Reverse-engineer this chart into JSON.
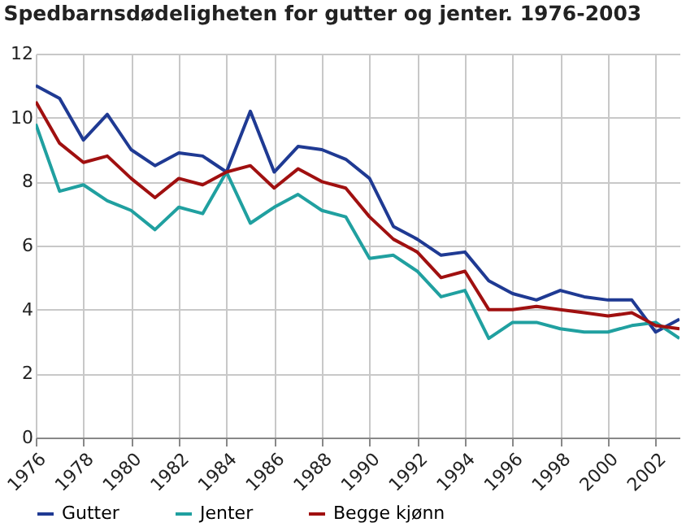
{
  "chart_data": {
    "type": "line",
    "title": "Spedbarnsdødeligheten for gutter og jenter. 1976-2003",
    "x": [
      1976,
      1977,
      1978,
      1979,
      1980,
      1981,
      1982,
      1983,
      1984,
      1985,
      1986,
      1987,
      1988,
      1989,
      1990,
      1991,
      1992,
      1993,
      1994,
      1995,
      1996,
      1997,
      1998,
      1999,
      2000,
      2001,
      2002,
      2003
    ],
    "series": [
      {
        "name": "Gutter",
        "color": "#1f3a93",
        "values": [
          11.0,
          10.6,
          9.3,
          10.1,
          9.0,
          8.5,
          8.9,
          8.8,
          8.3,
          10.2,
          8.3,
          9.1,
          9.0,
          8.7,
          8.1,
          6.6,
          6.2,
          5.7,
          5.8,
          4.9,
          4.5,
          4.3,
          4.6,
          4.4,
          4.3,
          4.3,
          3.3,
          3.7
        ]
      },
      {
        "name": "Jenter",
        "color": "#20a0a0",
        "values": [
          9.8,
          7.7,
          7.9,
          7.4,
          7.1,
          6.5,
          7.2,
          7.0,
          8.3,
          6.7,
          7.2,
          7.6,
          7.1,
          6.9,
          5.6,
          5.7,
          5.2,
          4.4,
          4.6,
          3.1,
          3.6,
          3.6,
          3.4,
          3.3,
          3.3,
          3.5,
          3.6,
          3.1
        ]
      },
      {
        "name": "Begge kjønn",
        "color": "#a01010",
        "values": [
          10.5,
          9.2,
          8.6,
          8.8,
          8.1,
          7.5,
          8.1,
          7.9,
          8.3,
          8.5,
          7.8,
          8.4,
          8.0,
          7.8,
          6.9,
          6.2,
          5.8,
          5.0,
          5.2,
          4.0,
          4.0,
          4.1,
          4.0,
          3.9,
          3.8,
          3.9,
          3.5,
          3.4
        ]
      }
    ],
    "xlim": [
      1976,
      2003
    ],
    "xticks": [
      1976,
      1978,
      1980,
      1982,
      1984,
      1986,
      1988,
      1990,
      1992,
      1994,
      1996,
      1998,
      2000,
      2002
    ],
    "ylim": [
      0,
      12
    ],
    "yticks": [
      0,
      2,
      4,
      6,
      8,
      10,
      12
    ],
    "grid": true,
    "legend": "bottom",
    "marker": "none",
    "line_style": "solid"
  }
}
